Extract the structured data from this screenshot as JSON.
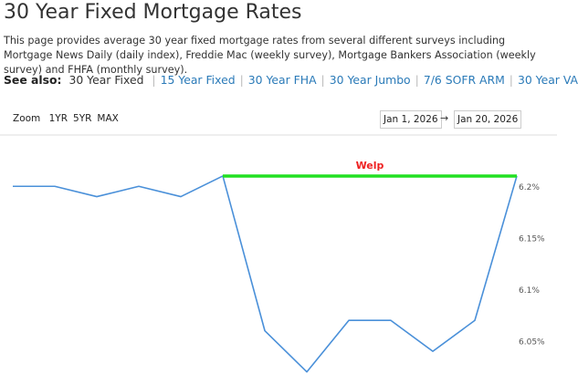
{
  "header": {
    "title": "30 Year Fixed Mortgage Rates",
    "description": "This page provides average 30 year fixed mortgage rates from several different surveys including Mortgage News Daily (daily index), Freddie Mac (weekly survey), Mortgage Bankers Association (weekly survey) and FHFA (monthly survey)."
  },
  "see_also": {
    "label": "See also:",
    "current": "30 Year Fixed",
    "links": [
      "15 Year Fixed",
      "30 Year FHA",
      "30 Year Jumbo",
      "7/6 SOFR ARM",
      "30 Year VA"
    ]
  },
  "controls": {
    "zoom_label": "Zoom",
    "zoom_buttons": [
      "1YR",
      "5YR",
      "MAX"
    ],
    "date_from": "Jan 1, 2026",
    "arrow": "→",
    "date_to": "Jan 20, 2026"
  },
  "chart_data": {
    "type": "line",
    "series": [
      {
        "color": "#4a90d9",
        "values": [
          6.2,
          6.2,
          6.19,
          6.2,
          6.19,
          6.21,
          6.06,
          6.02,
          6.07,
          6.07,
          6.04,
          6.07,
          6.21
        ]
      },
      {
        "color": "#22e022",
        "values": [
          null,
          null,
          null,
          null,
          null,
          6.21,
          6.21,
          6.21,
          6.21,
          6.21,
          6.21,
          6.21,
          6.21
        ]
      }
    ],
    "annotation": {
      "text": "Welp",
      "color": "#ee2222"
    },
    "ylim": [
      6.018,
      6.248
    ],
    "yticks": [
      {
        "value": 6.05,
        "label": "6.05%"
      },
      {
        "value": 6.1,
        "label": "6.1%"
      },
      {
        "value": 6.15,
        "label": "6.15%"
      },
      {
        "value": 6.2,
        "label": "6.2%"
      }
    ],
    "grid": false
  }
}
